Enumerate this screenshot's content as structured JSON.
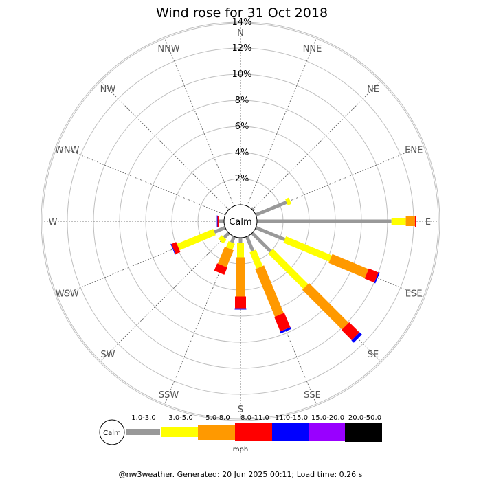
{
  "chart_data": {
    "type": "wind-rose",
    "title": "Wind rose for 31 Oct 2018",
    "unit": "mph",
    "calm_label": "Calm",
    "radial_ticks": [
      "2%",
      "4%",
      "6%",
      "8%",
      "10%",
      "12%",
      "14%"
    ],
    "radial_max": 14,
    "directions": [
      "N",
      "NNE",
      "NE",
      "ENE",
      "E",
      "ESE",
      "SE",
      "SSE",
      "S",
      "SSW",
      "SW",
      "WSW",
      "W",
      "WNW",
      "NW",
      "NNW"
    ],
    "speed_bins": [
      {
        "label": "1.0-3.0",
        "color": "#999999"
      },
      {
        "label": "3.0-5.0",
        "color": "#ffff00"
      },
      {
        "label": "5.0-8.0",
        "color": "#ff9900"
      },
      {
        "label": "8.0-11.0",
        "color": "#ff0000"
      },
      {
        "label": "11.0-15.0",
        "color": "#0000ff"
      },
      {
        "label": "15.0-20.0",
        "color": "#9900ff"
      },
      {
        "label": "20.0-50.0",
        "color": "#000000"
      }
    ],
    "cumulative_pct": {
      "N": [
        0,
        0,
        0,
        0,
        0,
        0,
        0
      ],
      "NNE": [
        0,
        0,
        0,
        0,
        0,
        0,
        0
      ],
      "NE": [
        0.15,
        0.15,
        0.15,
        0.15,
        0.15,
        0.15,
        0.15
      ],
      "ENE": [
        2.55,
        2.85,
        2.85,
        2.85,
        2.85,
        2.85,
        2.85
      ],
      "E": [
        10.3,
        11.4,
        12.1,
        12.2,
        12.2,
        12.2,
        12.2
      ],
      "ESE": [
        2.4,
        6.2,
        9.2,
        10.0,
        10.1,
        10.1,
        10.1
      ],
      "SE": [
        2.0,
        5.8,
        10.1,
        11.2,
        11.45,
        11.45,
        11.45
      ],
      "SSE": [
        1.2,
        2.55,
        6.5,
        7.7,
        7.85,
        7.85,
        7.85
      ],
      "S": [
        0.4,
        1.5,
        4.5,
        5.4,
        5.5,
        5.5,
        5.5
      ],
      "SSW": [
        0.5,
        1.0,
        2.4,
        3.0,
        3.0,
        3.0,
        3.0
      ],
      "SW": [
        0.5,
        0.9,
        0.9,
        0.9,
        0.9,
        0.9,
        0.9
      ],
      "WSW": [
        0.9,
        3.9,
        3.9,
        4.3,
        4.35,
        4.35,
        4.35
      ],
      "W": [
        0.4,
        0.4,
        0.4,
        0.5,
        0.55,
        0.55,
        0.55
      ],
      "WNW": [
        0,
        0,
        0,
        0,
        0,
        0,
        0
      ],
      "NW": [
        0,
        0,
        0,
        0,
        0,
        0,
        0
      ],
      "NNW": [
        0,
        0,
        0,
        0,
        0,
        0,
        0
      ]
    }
  },
  "footer": "@nw3weather. Generated: 20 Jun 2025 00:11; Load time: 0.26 s"
}
